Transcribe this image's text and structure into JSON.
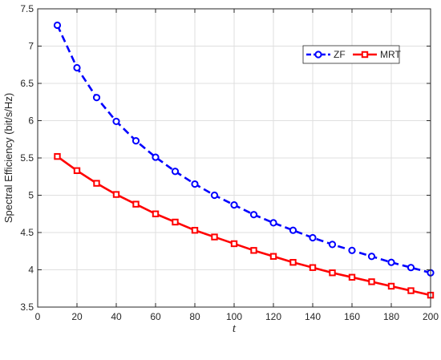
{
  "chart_data": {
    "type": "line",
    "xlabel": "t",
    "ylabel": "Spectral Efficiency (bit/s/Hz)",
    "xlim": [
      0,
      200
    ],
    "ylim": [
      3.5,
      7.5
    ],
    "xticks": [
      0,
      20,
      40,
      60,
      80,
      100,
      120,
      140,
      160,
      180,
      200
    ],
    "yticks": [
      3.5,
      4,
      4.5,
      5,
      5.5,
      6,
      6.5,
      7,
      7.5
    ],
    "grid": true,
    "legend_position": "top-right",
    "x": [
      10,
      20,
      30,
      40,
      50,
      60,
      70,
      80,
      90,
      100,
      110,
      120,
      130,
      140,
      150,
      160,
      170,
      180,
      190,
      200
    ],
    "series": [
      {
        "name": "ZF",
        "color": "#0000ff",
        "line_style": "dashed",
        "marker": "circle",
        "values": [
          7.28,
          6.71,
          6.31,
          5.99,
          5.73,
          5.51,
          5.32,
          5.15,
          5.0,
          4.87,
          4.74,
          4.63,
          4.53,
          4.43,
          4.34,
          4.26,
          4.18,
          4.1,
          4.03,
          3.96
        ]
      },
      {
        "name": "MRT",
        "color": "#ff0000",
        "line_style": "solid",
        "marker": "square",
        "values": [
          5.52,
          5.33,
          5.16,
          5.01,
          4.88,
          4.75,
          4.64,
          4.53,
          4.44,
          4.35,
          4.26,
          4.18,
          4.1,
          4.03,
          3.96,
          3.9,
          3.84,
          3.78,
          3.72,
          3.66
        ]
      }
    ]
  }
}
